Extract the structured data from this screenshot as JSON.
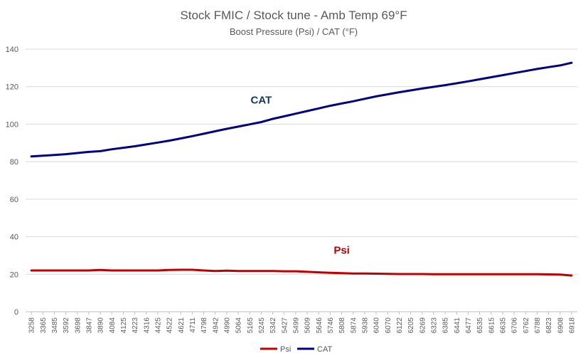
{
  "chart_data": {
    "type": "line",
    "title": "Stock FMIC / Stock tune - Amb Temp 69°F",
    "subtitle": "Boost Pressure (Psi) / CAT (°F)",
    "xlabel": "",
    "ylabel": "",
    "ylim": [
      0,
      140
    ],
    "yticks": [
      0,
      20,
      40,
      60,
      80,
      100,
      120,
      140
    ],
    "grid": true,
    "legend_position": "bottom",
    "categories": [
      "3258",
      "3365",
      "3485",
      "3592",
      "3698",
      "3847",
      "3890",
      "4084",
      "4125",
      "4223",
      "4316",
      "4425",
      "4522",
      "4621",
      "4711",
      "4798",
      "4942",
      "4990",
      "5064",
      "5165",
      "5245",
      "5342",
      "5427",
      "5499",
      "5609",
      "5646",
      "5746",
      "5808",
      "5874",
      "5938",
      "6040",
      "6070",
      "6122",
      "6205",
      "6269",
      "6323",
      "6385",
      "6441",
      "6477",
      "6535",
      "6615",
      "6635",
      "6706",
      "6762",
      "6788",
      "6823",
      "6908",
      "6918"
    ],
    "series": [
      {
        "name": "Psi",
        "color": "#c00000",
        "values": [
          22.0,
          22.0,
          22.0,
          22.0,
          22.0,
          22.0,
          22.3,
          22.0,
          22.0,
          22.0,
          22.0,
          22.0,
          22.3,
          22.4,
          22.4,
          22.0,
          21.7,
          21.9,
          21.7,
          21.7,
          21.7,
          21.7,
          21.6,
          21.6,
          21.3,
          21.0,
          20.8,
          20.6,
          20.4,
          20.4,
          20.3,
          20.2,
          20.1,
          20.1,
          20.1,
          20.0,
          20.0,
          20.0,
          20.0,
          20.0,
          20.0,
          20.0,
          20.0,
          20.0,
          20.0,
          19.9,
          19.8,
          19.3
        ]
      },
      {
        "name": "CAT",
        "color": "#000080",
        "values": [
          82.8,
          83.2,
          83.6,
          84.0,
          84.6,
          85.2,
          85.6,
          86.6,
          87.4,
          88.2,
          89.2,
          90.2,
          91.2,
          92.4,
          93.6,
          94.9,
          96.2,
          97.5,
          98.7,
          99.9,
          101.1,
          102.8,
          104.2,
          105.6,
          107.0,
          108.4,
          109.8,
          111.0,
          112.2,
          113.5,
          114.8,
          115.9,
          117.0,
          118.0,
          119.0,
          119.9,
          120.8,
          121.8,
          122.8,
          123.9,
          125.0,
          126.1,
          127.2,
          128.3,
          129.4,
          130.4,
          131.3,
          132.7
        ]
      }
    ],
    "annotations": [
      {
        "text": "CAT",
        "color": "#17375e",
        "x": "5245",
        "y": 111
      },
      {
        "text": "Psi",
        "color": "#c00000",
        "x": "5808",
        "y": 31
      }
    ]
  }
}
